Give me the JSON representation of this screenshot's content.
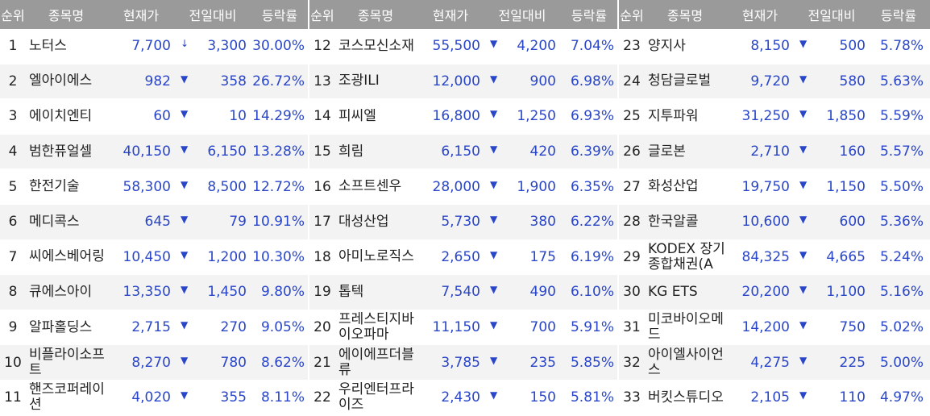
{
  "headers": {
    "rank": "순위",
    "name": "종목명",
    "price": "현재가",
    "change": "전일대비",
    "rate": "등락률"
  },
  "colors": {
    "header_bg": "#9a9a9a",
    "down_blue": "#2a46c8",
    "row_alt": "#f3f3f3"
  },
  "icons": {
    "down": "down-triangle-icon"
  },
  "columns": [
    {
      "rows": [
        {
          "rank": "1",
          "name": "노터스",
          "price": "7,700",
          "arrow": "↓",
          "change": "3,300",
          "rate": "30.00%"
        },
        {
          "rank": "2",
          "name": "엘아이에스",
          "price": "982",
          "arrow": "▼",
          "change": "358",
          "rate": "26.72%"
        },
        {
          "rank": "3",
          "name": "에이치엔티",
          "price": "60",
          "arrow": "▼",
          "change": "10",
          "rate": "14.29%"
        },
        {
          "rank": "4",
          "name": "범한퓨얼셀",
          "price": "40,150",
          "arrow": "▼",
          "change": "6,150",
          "rate": "13.28%"
        },
        {
          "rank": "5",
          "name": "한전기술",
          "price": "58,300",
          "arrow": "▼",
          "change": "8,500",
          "rate": "12.72%"
        },
        {
          "rank": "6",
          "name": "메디콕스",
          "price": "645",
          "arrow": "▼",
          "change": "79",
          "rate": "10.91%"
        },
        {
          "rank": "7",
          "name": "씨에스베어링",
          "price": "10,450",
          "arrow": "▼",
          "change": "1,200",
          "rate": "10.30%"
        },
        {
          "rank": "8",
          "name": "큐에스아이",
          "price": "13,350",
          "arrow": "▼",
          "change": "1,450",
          "rate": "9.80%"
        },
        {
          "rank": "9",
          "name": "알파홀딩스",
          "price": "2,715",
          "arrow": "▼",
          "change": "270",
          "rate": "9.05%"
        },
        {
          "rank": "10",
          "name": "비플라이소프트",
          "price": "8,270",
          "arrow": "▼",
          "change": "780",
          "rate": "8.62%"
        },
        {
          "rank": "11",
          "name": "핸즈코퍼레이션",
          "price": "4,020",
          "arrow": "▼",
          "change": "355",
          "rate": "8.11%"
        }
      ]
    },
    {
      "rows": [
        {
          "rank": "12",
          "name": "코스모신소재",
          "price": "55,500",
          "arrow": "▼",
          "change": "4,200",
          "rate": "7.04%"
        },
        {
          "rank": "13",
          "name": "조광ILI",
          "price": "12,000",
          "arrow": "▼",
          "change": "900",
          "rate": "6.98%"
        },
        {
          "rank": "14",
          "name": "피씨엘",
          "price": "16,800",
          "arrow": "▼",
          "change": "1,250",
          "rate": "6.93%"
        },
        {
          "rank": "15",
          "name": "희림",
          "price": "6,150",
          "arrow": "▼",
          "change": "420",
          "rate": "6.39%"
        },
        {
          "rank": "16",
          "name": "소프트센우",
          "price": "28,000",
          "arrow": "▼",
          "change": "1,900",
          "rate": "6.35%"
        },
        {
          "rank": "17",
          "name": "대성산업",
          "price": "5,730",
          "arrow": "▼",
          "change": "380",
          "rate": "6.22%"
        },
        {
          "rank": "18",
          "name": "아미노로직스",
          "price": "2,650",
          "arrow": "▼",
          "change": "175",
          "rate": "6.19%"
        },
        {
          "rank": "19",
          "name": "톱텍",
          "price": "7,540",
          "arrow": "▼",
          "change": "490",
          "rate": "6.10%"
        },
        {
          "rank": "20",
          "name": "프레스티지바이오파마",
          "price": "11,150",
          "arrow": "▼",
          "change": "700",
          "rate": "5.91%"
        },
        {
          "rank": "21",
          "name": "에이에프더블류",
          "price": "3,785",
          "arrow": "▼",
          "change": "235",
          "rate": "5.85%"
        },
        {
          "rank": "22",
          "name": "우리엔터프라이즈",
          "price": "2,430",
          "arrow": "▼",
          "change": "150",
          "rate": "5.81%"
        }
      ]
    },
    {
      "rows": [
        {
          "rank": "23",
          "name": "양지사",
          "price": "8,150",
          "arrow": "▼",
          "change": "500",
          "rate": "5.78%"
        },
        {
          "rank": "24",
          "name": "청담글로벌",
          "price": "9,720",
          "arrow": "▼",
          "change": "580",
          "rate": "5.63%"
        },
        {
          "rank": "25",
          "name": "지투파워",
          "price": "31,250",
          "arrow": "▼",
          "change": "1,850",
          "rate": "5.59%"
        },
        {
          "rank": "26",
          "name": "글로본",
          "price": "2,710",
          "arrow": "▼",
          "change": "160",
          "rate": "5.57%"
        },
        {
          "rank": "27",
          "name": "화성산업",
          "price": "19,750",
          "arrow": "▼",
          "change": "1,150",
          "rate": "5.50%"
        },
        {
          "rank": "28",
          "name": "한국알콜",
          "price": "10,600",
          "arrow": "▼",
          "change": "600",
          "rate": "5.36%"
        },
        {
          "rank": "29",
          "name": "KODEX 장기종합채권(A",
          "price": "84,325",
          "arrow": "▼",
          "change": "4,665",
          "rate": "5.24%"
        },
        {
          "rank": "30",
          "name": "KG ETS",
          "price": "20,200",
          "arrow": "▼",
          "change": "1,100",
          "rate": "5.16%"
        },
        {
          "rank": "31",
          "name": "미코바이오메드",
          "price": "14,200",
          "arrow": "▼",
          "change": "750",
          "rate": "5.02%"
        },
        {
          "rank": "32",
          "name": "아이엘사이언스",
          "price": "4,275",
          "arrow": "▼",
          "change": "225",
          "rate": "5.00%"
        },
        {
          "rank": "33",
          "name": "버킷스튜디오",
          "price": "2,105",
          "arrow": "▼",
          "change": "110",
          "rate": "4.97%"
        }
      ]
    }
  ]
}
